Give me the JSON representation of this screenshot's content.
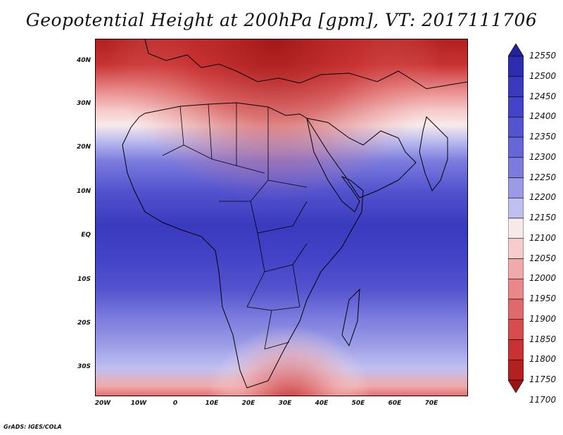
{
  "title": "Geopotential Height at 200hPa [gpm], VT: 2017111706",
  "credit": "GrADS: IGES/COLA",
  "map": {
    "region": "Africa and Middle East",
    "lat_ticks": [
      "40N",
      "30N",
      "20N",
      "10N",
      "EQ",
      "10S",
      "20S",
      "30S"
    ],
    "lon_ticks": [
      "20W",
      "10W",
      "0",
      "10E",
      "20E",
      "30E",
      "40E",
      "50E",
      "60E",
      "70E"
    ],
    "field_pattern": "high heights (blue, ~12400-12450 gpm) across the tropics; low heights (red, ~11750-11850 gpm) over the Mediterranean in the north and south of South Africa"
  },
  "colorbar": {
    "labels": [
      "12550",
      "12500",
      "12450",
      "12400",
      "12350",
      "12300",
      "12250",
      "12200",
      "12150",
      "12100",
      "12050",
      "12000",
      "11950",
      "11900",
      "11850",
      "11800",
      "11750",
      "11700"
    ],
    "colors": [
      "#23239c",
      "#2d2db0",
      "#3a3abf",
      "#4444c8",
      "#5454cf",
      "#6666d6",
      "#7c7cde",
      "#9a9ae6",
      "#c0c0f0",
      "#f8eaea",
      "#f6cccc",
      "#f0aaaa",
      "#e88888",
      "#e06a6a",
      "#d84c4c",
      "#c83232",
      "#b22020",
      "#9a1414"
    ]
  }
}
